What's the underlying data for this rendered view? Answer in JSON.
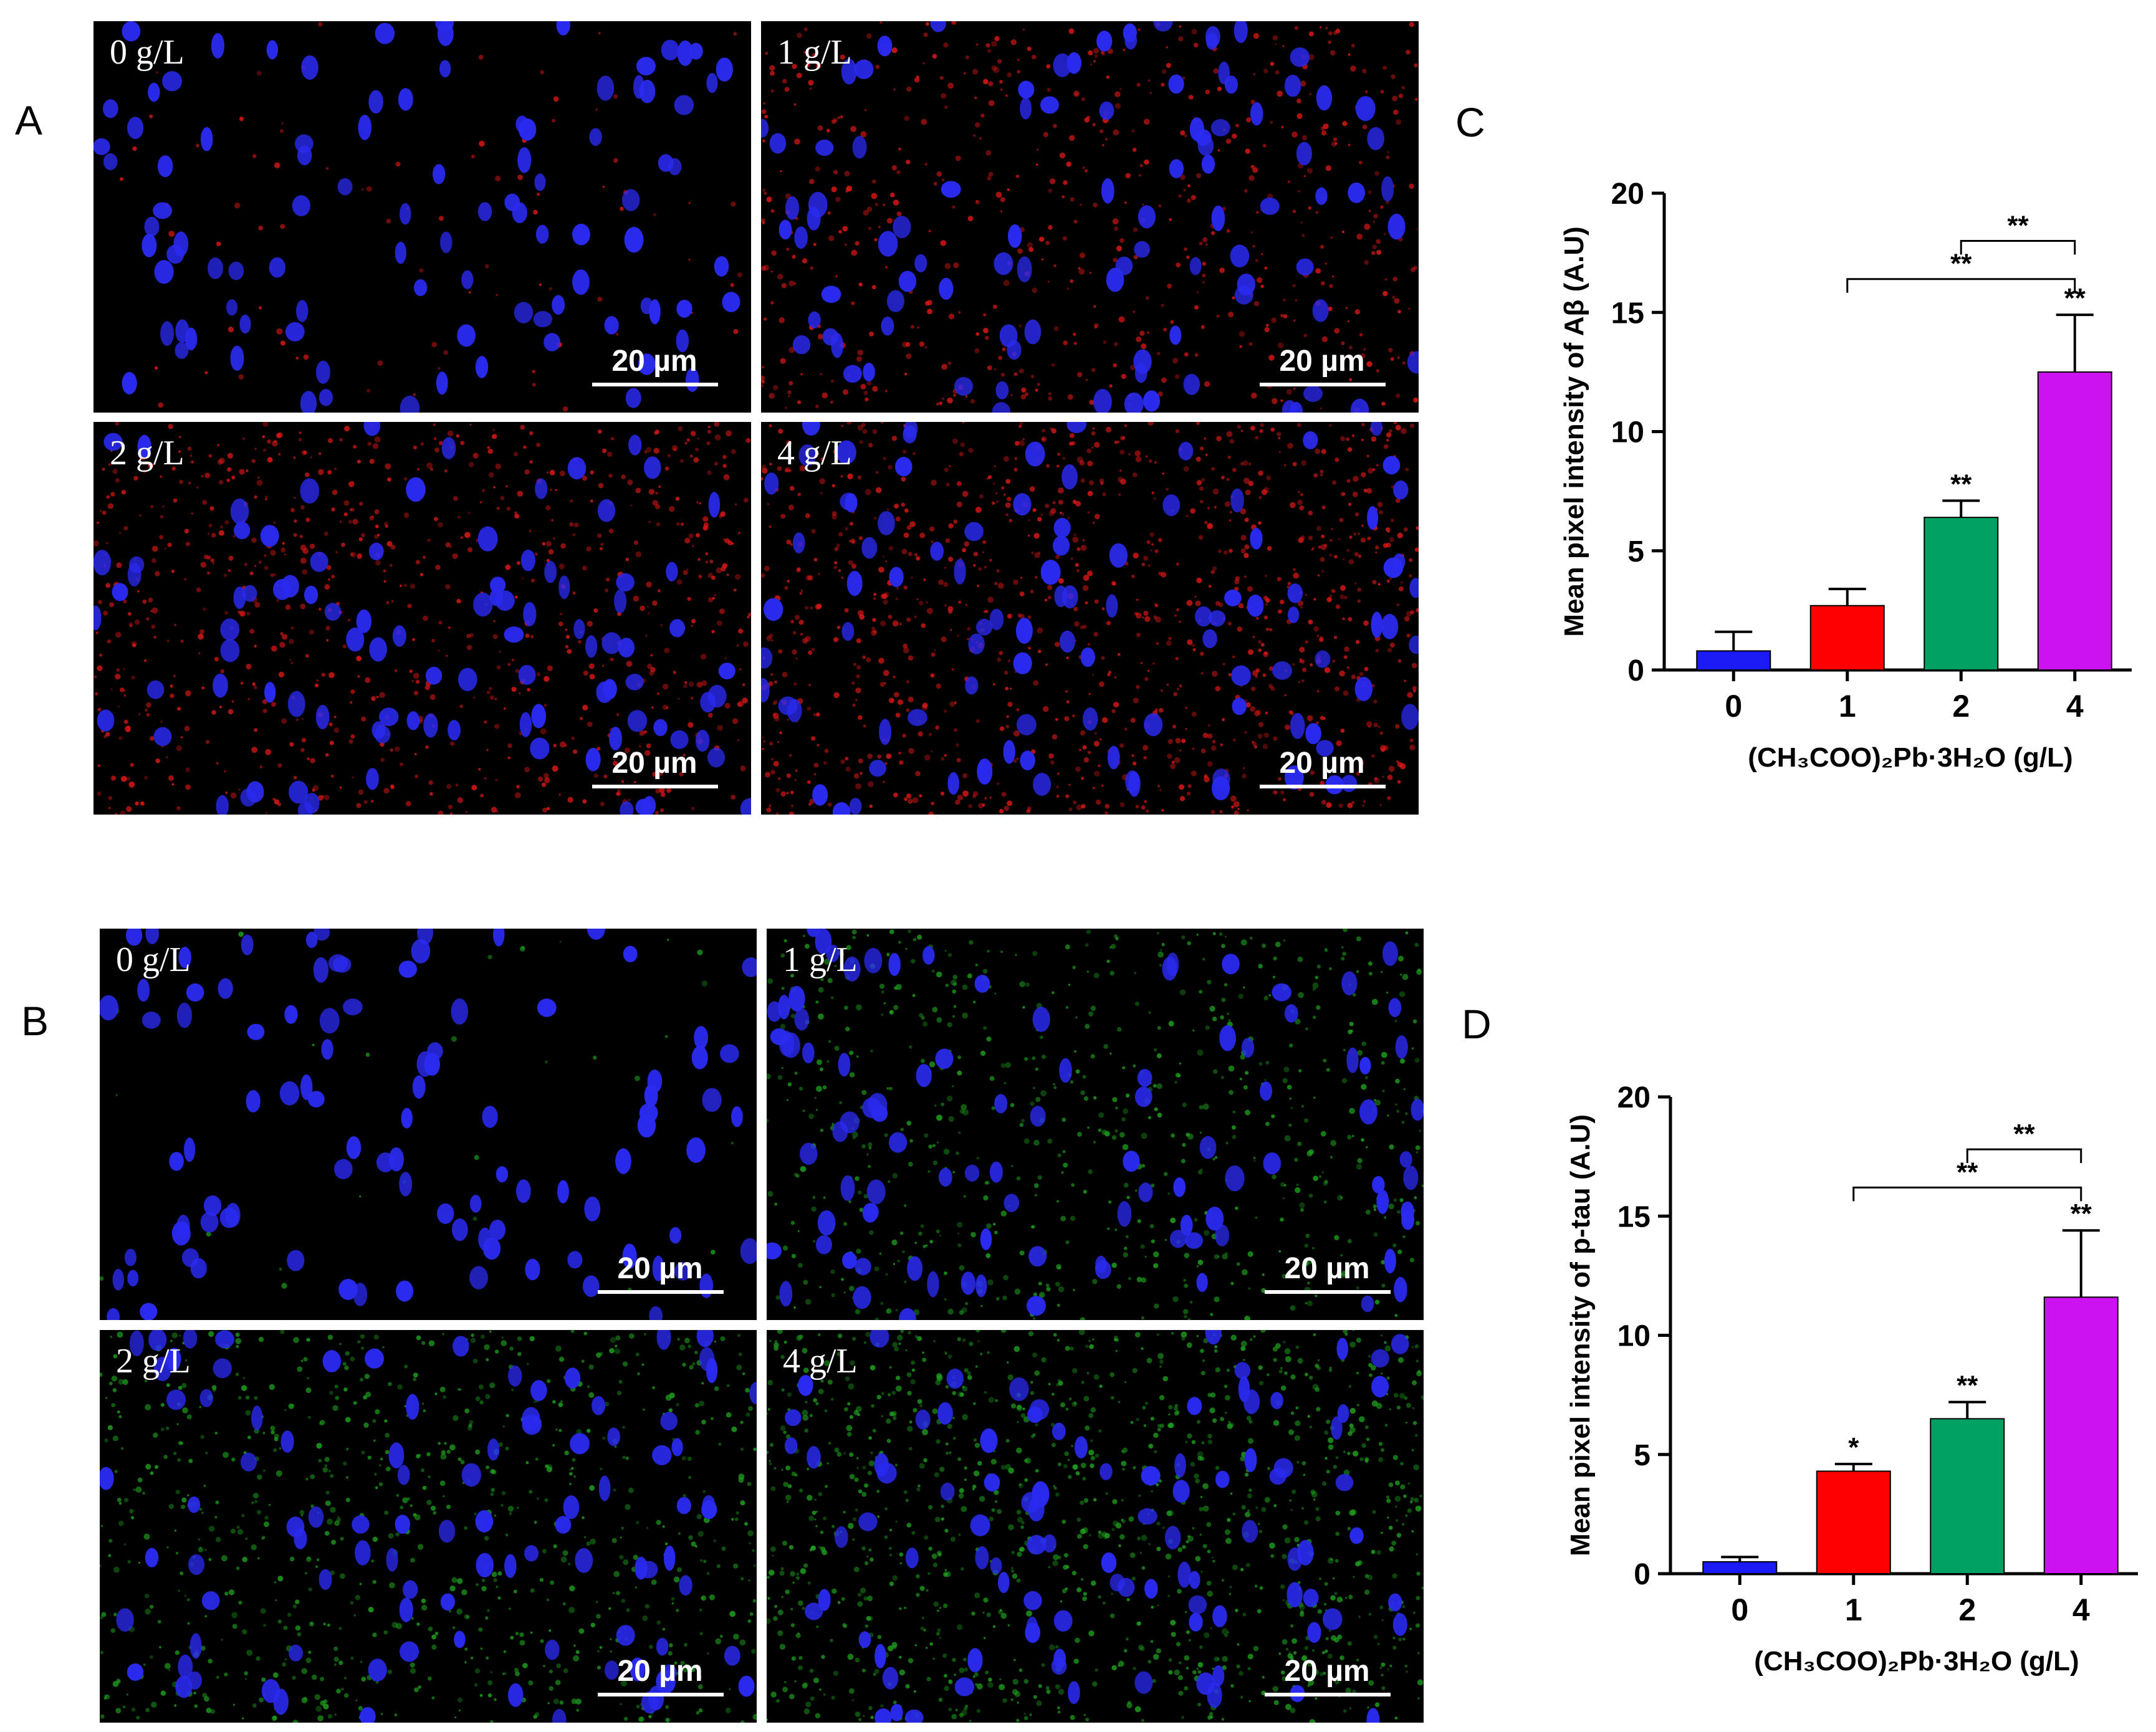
{
  "panel_letters": {
    "A": "A",
    "B": "B",
    "C": "C",
    "D": "D"
  },
  "micrographs": {
    "A": {
      "stain_color": "#e01818",
      "nuclei_color": "#2a2af0",
      "panels": [
        {
          "label": "0 g/L",
          "scale": "20 µm",
          "intensity": 0.06
        },
        {
          "label": "1 g/L",
          "scale": "20 µm",
          "intensity": 0.45
        },
        {
          "label": "2 g/L",
          "scale": "20 µm",
          "intensity": 0.6
        },
        {
          "label": "4 g/L",
          "scale": "20 µm",
          "intensity": 0.8
        }
      ]
    },
    "B": {
      "stain_color": "#1fa21f",
      "nuclei_color": "#2a2af0",
      "panels": [
        {
          "label": "0 g/L",
          "scale": "20 µm",
          "intensity": 0.02
        },
        {
          "label": "1 g/L",
          "scale": "20 µm",
          "intensity": 0.5
        },
        {
          "label": "2 g/L",
          "scale": "20 µm",
          "intensity": 0.6
        },
        {
          "label": "4 g/L",
          "scale": "20 µm",
          "intensity": 0.85
        }
      ]
    }
  },
  "chart_data": [
    {
      "panel": "C",
      "type": "bar",
      "categories": [
        "0",
        "1",
        "2",
        "4"
      ],
      "values": [
        0.8,
        2.7,
        6.4,
        12.5
      ],
      "errors": [
        0.8,
        0.7,
        0.7,
        2.4
      ],
      "colors": [
        "#1a1af5",
        "#ff0000",
        "#00a063",
        "#cc12f0"
      ],
      "value_marks": [
        "",
        "",
        "**",
        "**"
      ],
      "ylabel": "Mean pixel intensity of Aβ (A.U)",
      "xlabel": "(CH₃COO)₂Pb·3H₂O (g/L)",
      "ylim": [
        0,
        20
      ],
      "yticks": [
        "0",
        "5",
        "10",
        "15",
        "20"
      ],
      "brackets": [
        {
          "from": "2",
          "to": "4",
          "label": "**",
          "level": 18.0
        },
        {
          "from": "1",
          "to": "4",
          "label": "**",
          "level": 16.4
        }
      ]
    },
    {
      "panel": "D",
      "type": "bar",
      "categories": [
        "0",
        "1",
        "2",
        "4"
      ],
      "values": [
        0.5,
        4.3,
        6.5,
        11.6
      ],
      "errors": [
        0.2,
        0.3,
        0.7,
        2.8
      ],
      "colors": [
        "#1a1af5",
        "#ff0000",
        "#00a063",
        "#cc12f0"
      ],
      "value_marks": [
        "",
        "*",
        "**",
        "**"
      ],
      "ylabel": "Mean pixel intensity of p-tau (A.U)",
      "xlabel": "(CH₃COO)₂Pb·3H₂O (g/L)",
      "ylim": [
        0,
        20
      ],
      "yticks": [
        "0",
        "5",
        "10",
        "15",
        "20"
      ],
      "brackets": [
        {
          "from": "2",
          "to": "4",
          "label": "**",
          "level": 17.8
        },
        {
          "from": "1",
          "to": "4",
          "label": "**",
          "level": 16.2
        }
      ]
    }
  ]
}
